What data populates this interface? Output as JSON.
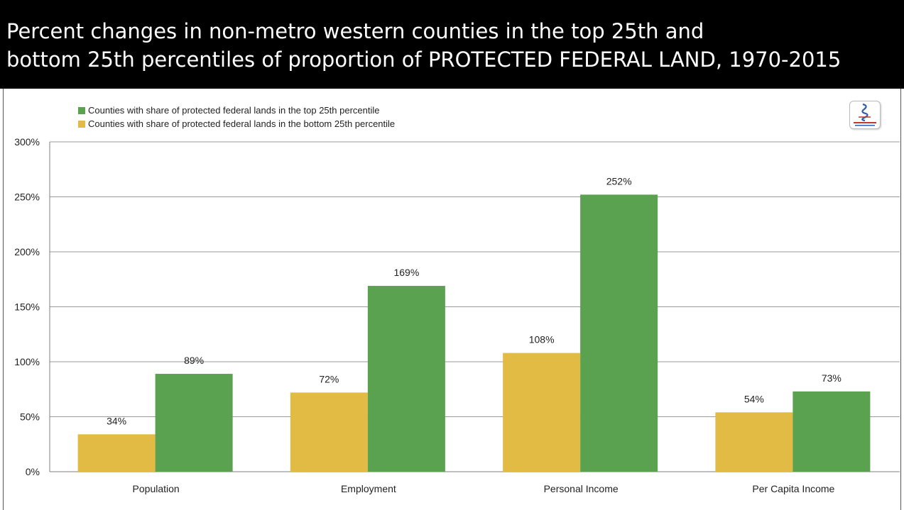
{
  "header": {
    "title_line1": "Percent changes in non-metro western counties in the top 25th and",
    "title_line2": "bottom 25th percentiles of proportion of PROTECTED FEDERAL LAND, 1970-2015"
  },
  "logo": {
    "icon": "headwaters-economics-logo"
  },
  "chart_data": {
    "type": "bar",
    "title": "Percent changes in non-metro western counties in the top 25th and bottom 25th percentiles of proportion of PROTECTED FEDERAL LAND, 1970-2015",
    "xlabel": "",
    "ylabel": "",
    "categories": [
      "Population",
      "Employment",
      "Personal Income",
      "Per Capita Income"
    ],
    "series": [
      {
        "name": "Counties with share of protected federal lands in the bottom 25th percentile",
        "color": "#e2bb45",
        "values": [
          34,
          72,
          108,
          54
        ],
        "labels": [
          "34%",
          "72%",
          "108%",
          "54%"
        ]
      },
      {
        "name": "Counties with share of protected federal lands in the top 25th percentile",
        "color": "#5aa150",
        "values": [
          89,
          169,
          252,
          73
        ],
        "labels": [
          "89%",
          "169%",
          "252%",
          "73%"
        ]
      }
    ],
    "ylim": [
      0,
      300
    ],
    "yticks": [
      0,
      50,
      100,
      150,
      200,
      250,
      300
    ],
    "ytick_labels": [
      "0%",
      "50%",
      "100%",
      "150%",
      "200%",
      "250%",
      "300%"
    ],
    "grid": true,
    "legend": "top-left",
    "legend_entries": [
      {
        "label": "Counties with share of protected federal lands in the top 25th percentile",
        "color": "#5aa150"
      },
      {
        "label": "Counties with share of protected federal lands in the bottom 25th percentile",
        "color": "#e2bb45"
      }
    ]
  }
}
